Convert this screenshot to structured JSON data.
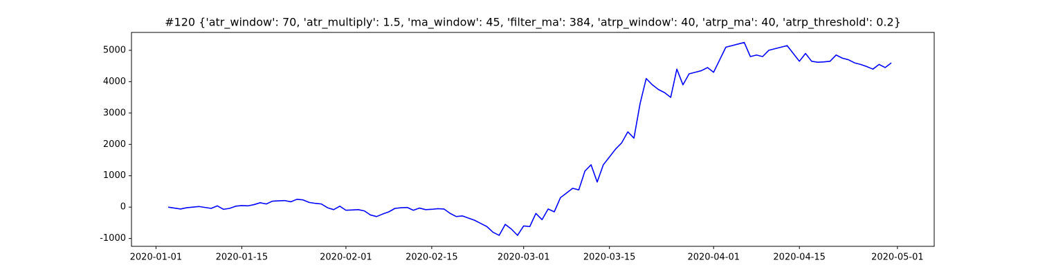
{
  "chart_data": {
    "type": "line",
    "title": "#120 {'atr_window': 70, 'atr_multiply': 1.5, 'ma_window': 45, 'filter_ma': 384, 'atrp_window': 40, 'atrp_ma': 40, 'atrp_threshold': 0.2}",
    "x": [
      "2020-01-03",
      "2020-01-04",
      "2020-01-05",
      "2020-01-06",
      "2020-01-07",
      "2020-01-08",
      "2020-01-09",
      "2020-01-10",
      "2020-01-11",
      "2020-01-12",
      "2020-01-13",
      "2020-01-14",
      "2020-01-15",
      "2020-01-16",
      "2020-01-17",
      "2020-01-18",
      "2020-01-19",
      "2020-01-20",
      "2020-01-21",
      "2020-01-22",
      "2020-01-23",
      "2020-01-24",
      "2020-01-25",
      "2020-01-26",
      "2020-01-27",
      "2020-01-28",
      "2020-01-29",
      "2020-01-30",
      "2020-01-31",
      "2020-02-01",
      "2020-02-02",
      "2020-02-03",
      "2020-02-04",
      "2020-02-05",
      "2020-02-06",
      "2020-02-07",
      "2020-02-08",
      "2020-02-09",
      "2020-02-10",
      "2020-02-11",
      "2020-02-12",
      "2020-02-13",
      "2020-02-14",
      "2020-02-15",
      "2020-02-16",
      "2020-02-17",
      "2020-02-18",
      "2020-02-19",
      "2020-02-20",
      "2020-02-21",
      "2020-02-22",
      "2020-02-23",
      "2020-02-24",
      "2020-02-25",
      "2020-02-26",
      "2020-02-27",
      "2020-02-28",
      "2020-02-29",
      "2020-03-01",
      "2020-03-02",
      "2020-03-03",
      "2020-03-04",
      "2020-03-05",
      "2020-03-06",
      "2020-03-07",
      "2020-03-08",
      "2020-03-09",
      "2020-03-10",
      "2020-03-11",
      "2020-03-12",
      "2020-03-13",
      "2020-03-14",
      "2020-03-15",
      "2020-03-16",
      "2020-03-17",
      "2020-03-18",
      "2020-03-19",
      "2020-03-20",
      "2020-03-21",
      "2020-03-22",
      "2020-03-23",
      "2020-03-24",
      "2020-03-25",
      "2020-03-26",
      "2020-03-27",
      "2020-03-28",
      "2020-03-29",
      "2020-03-30",
      "2020-03-31",
      "2020-04-01",
      "2020-04-02",
      "2020-04-03",
      "2020-04-04",
      "2020-04-05",
      "2020-04-06",
      "2020-04-07",
      "2020-04-08",
      "2020-04-09",
      "2020-04-10",
      "2020-04-11",
      "2020-04-12",
      "2020-04-13",
      "2020-04-14",
      "2020-04-15",
      "2020-04-16",
      "2020-04-17",
      "2020-04-18",
      "2020-04-19",
      "2020-04-20",
      "2020-04-21",
      "2020-04-22",
      "2020-04-23",
      "2020-04-24",
      "2020-04-25",
      "2020-04-26",
      "2020-04-27",
      "2020-04-28",
      "2020-04-29",
      "2020-04-30"
    ],
    "series": [
      {
        "color": "#0000ff",
        "values": [
          0,
          -30,
          -60,
          -20,
          0,
          20,
          -10,
          -40,
          40,
          -70,
          -40,
          30,
          50,
          40,
          80,
          140,
          100,
          190,
          200,
          210,
          170,
          250,
          230,
          150,
          120,
          100,
          -20,
          -80,
          30,
          -100,
          -90,
          -80,
          -120,
          -250,
          -300,
          -220,
          -150,
          -40,
          -20,
          -10,
          -100,
          -30,
          -80,
          -70,
          -50,
          -60,
          -200,
          -300,
          -280,
          -350,
          -420,
          -520,
          -620,
          -800,
          -900,
          -550,
          -700,
          -900,
          -600,
          -620,
          -200,
          -400,
          -60,
          -150,
          300,
          450,
          600,
          550,
          1150,
          1350,
          800,
          1350,
          1600,
          1850,
          2050,
          2400,
          2200,
          3300,
          4100,
          3900,
          3750,
          3650,
          3500,
          4400,
          3900,
          4250,
          4300,
          4350,
          4450,
          4300,
          4700,
          5100,
          5150,
          5200,
          5250,
          4800,
          4850,
          4800,
          5000,
          5050,
          5100,
          5150,
          4900,
          4650,
          4900,
          4650,
          4620,
          4630,
          4650,
          4850,
          4750,
          4700,
          4600,
          4550,
          4480,
          4400,
          4550,
          4450,
          4600
        ]
      }
    ],
    "xlim": [
      "2019-12-28",
      "2020-05-07"
    ],
    "xticks": [
      "2020-01-01",
      "2020-01-15",
      "2020-02-01",
      "2020-02-15",
      "2020-03-01",
      "2020-03-15",
      "2020-04-01",
      "2020-04-15",
      "2020-05-01"
    ],
    "ylim": [
      -1250,
      5570
    ],
    "yticks": [
      -1000,
      0,
      1000,
      2000,
      3000,
      4000,
      5000
    ],
    "grid": false
  }
}
